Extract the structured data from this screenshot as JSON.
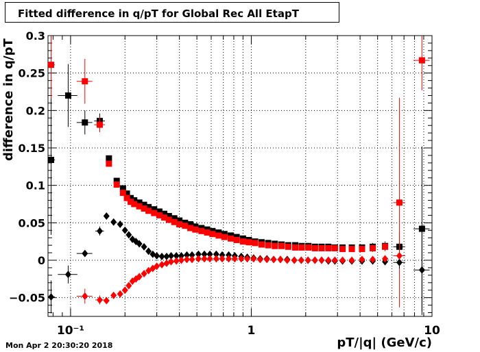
{
  "chart_data": {
    "type": "scatter",
    "title": "Fitted difference in q/pT for Global Rec All EtapT",
    "xlabel": "pT/|q| (GeV/c)",
    "ylabel": "difference in q/pT",
    "xscale": "log",
    "xlim": [
      0.075,
      10
    ],
    "ylim": [
      -0.075,
      0.3
    ],
    "grid": true,
    "timestamp": "Mon Apr  2 20:30:20 2018",
    "x_ticks": [
      {
        "value": 0.1,
        "label": "10⁻¹"
      },
      {
        "value": 1,
        "label": "1"
      },
      {
        "value": 10,
        "label": "10"
      }
    ],
    "y_ticks": [
      {
        "value": -0.05,
        "label": "−0.05"
      },
      {
        "value": 0,
        "label": "0"
      },
      {
        "value": 0.05,
        "label": "0.05"
      },
      {
        "value": 0.1,
        "label": "0.1"
      },
      {
        "value": 0.15,
        "label": "0.15"
      },
      {
        "value": 0.2,
        "label": "0.2"
      },
      {
        "value": 0.25,
        "label": "0.25"
      },
      {
        "value": 0.3,
        "label": "0.3"
      }
    ],
    "series": [
      {
        "color": "#000000",
        "marker": "square",
        "points": [
          {
            "x": 0.078,
            "y": 0.134,
            "ey": 0.1,
            "ex": 0.004
          },
          {
            "x": 0.097,
            "y": 0.22,
            "ey": 0.042,
            "ex": 0.012
          },
          {
            "x": 0.12,
            "y": 0.184,
            "ey": 0.016,
            "ex": 0.012
          },
          {
            "x": 0.145,
            "y": 0.186,
            "ey": 0.01,
            "ex": 0.01
          },
          {
            "x": 0.163,
            "y": 0.136,
            "ey": 0.004
          },
          {
            "x": 0.18,
            "y": 0.106,
            "ey": 0.003
          },
          {
            "x": 0.195,
            "y": 0.096
          },
          {
            "x": 0.205,
            "y": 0.089
          },
          {
            "x": 0.215,
            "y": 0.083
          },
          {
            "x": 0.225,
            "y": 0.08
          },
          {
            "x": 0.24,
            "y": 0.077
          },
          {
            "x": 0.255,
            "y": 0.074
          },
          {
            "x": 0.27,
            "y": 0.071
          },
          {
            "x": 0.29,
            "y": 0.068
          },
          {
            "x": 0.31,
            "y": 0.065
          },
          {
            "x": 0.33,
            "y": 0.062
          },
          {
            "x": 0.35,
            "y": 0.059
          },
          {
            "x": 0.375,
            "y": 0.056
          },
          {
            "x": 0.4,
            "y": 0.053
          },
          {
            "x": 0.43,
            "y": 0.05
          },
          {
            "x": 0.46,
            "y": 0.048
          },
          {
            "x": 0.49,
            "y": 0.045
          },
          {
            "x": 0.53,
            "y": 0.043
          },
          {
            "x": 0.57,
            "y": 0.041
          },
          {
            "x": 0.61,
            "y": 0.039
          },
          {
            "x": 0.66,
            "y": 0.037
          },
          {
            "x": 0.71,
            "y": 0.035
          },
          {
            "x": 0.77,
            "y": 0.033
          },
          {
            "x": 0.83,
            "y": 0.031
          },
          {
            "x": 0.9,
            "y": 0.029
          },
          {
            "x": 0.97,
            "y": 0.027
          },
          {
            "x": 1.05,
            "y": 0.025
          },
          {
            "x": 1.14,
            "y": 0.024
          },
          {
            "x": 1.24,
            "y": 0.023
          },
          {
            "x": 1.35,
            "y": 0.022
          },
          {
            "x": 1.47,
            "y": 0.021
          },
          {
            "x": 1.6,
            "y": 0.02
          },
          {
            "x": 1.75,
            "y": 0.02
          },
          {
            "x": 1.9,
            "y": 0.019
          },
          {
            "x": 2.07,
            "y": 0.019
          },
          {
            "x": 2.25,
            "y": 0.018
          },
          {
            "x": 2.45,
            "y": 0.018
          },
          {
            "x": 2.67,
            "y": 0.018
          },
          {
            "x": 2.9,
            "y": 0.017,
            "ey": 0.002
          },
          {
            "x": 3.2,
            "y": 0.017,
            "ey": 0.003
          },
          {
            "x": 3.6,
            "y": 0.017,
            "ey": 0.003
          },
          {
            "x": 4.1,
            "y": 0.017,
            "ey": 0.004
          },
          {
            "x": 4.7,
            "y": 0.018,
            "ey": 0.005
          },
          {
            "x": 5.5,
            "y": 0.019,
            "ey": 0.006
          },
          {
            "x": 6.6,
            "y": 0.018,
            "ey": 0.02,
            "ex": 0.5
          },
          {
            "x": 8.8,
            "y": 0.042,
            "ey": 0.11,
            "ex": 0.9
          }
        ]
      },
      {
        "color": "#ff0000",
        "marker": "square",
        "points": [
          {
            "x": 0.078,
            "y": 0.261,
            "ey": 0.045,
            "ex": 0.004
          },
          {
            "x": 0.12,
            "y": 0.239,
            "ey": 0.03,
            "ex": 0.012
          },
          {
            "x": 0.145,
            "y": 0.181,
            "ey": 0.01,
            "ex": 0.01
          },
          {
            "x": 0.163,
            "y": 0.129,
            "ey": 0.004
          },
          {
            "x": 0.18,
            "y": 0.101,
            "ey": 0.003
          },
          {
            "x": 0.195,
            "y": 0.09
          },
          {
            "x": 0.205,
            "y": 0.083
          },
          {
            "x": 0.215,
            "y": 0.078
          },
          {
            "x": 0.225,
            "y": 0.075
          },
          {
            "x": 0.24,
            "y": 0.072
          },
          {
            "x": 0.255,
            "y": 0.069
          },
          {
            "x": 0.27,
            "y": 0.066
          },
          {
            "x": 0.29,
            "y": 0.063
          },
          {
            "x": 0.31,
            "y": 0.06
          },
          {
            "x": 0.33,
            "y": 0.057
          },
          {
            "x": 0.35,
            "y": 0.054
          },
          {
            "x": 0.375,
            "y": 0.051
          },
          {
            "x": 0.4,
            "y": 0.048
          },
          {
            "x": 0.43,
            "y": 0.046
          },
          {
            "x": 0.46,
            "y": 0.043
          },
          {
            "x": 0.49,
            "y": 0.041
          },
          {
            "x": 0.53,
            "y": 0.039
          },
          {
            "x": 0.57,
            "y": 0.037
          },
          {
            "x": 0.61,
            "y": 0.035
          },
          {
            "x": 0.66,
            "y": 0.033
          },
          {
            "x": 0.71,
            "y": 0.031
          },
          {
            "x": 0.77,
            "y": 0.029
          },
          {
            "x": 0.83,
            "y": 0.027
          },
          {
            "x": 0.9,
            "y": 0.025
          },
          {
            "x": 0.97,
            "y": 0.024
          },
          {
            "x": 1.05,
            "y": 0.023
          },
          {
            "x": 1.14,
            "y": 0.021
          },
          {
            "x": 1.24,
            "y": 0.02
          },
          {
            "x": 1.35,
            "y": 0.019
          },
          {
            "x": 1.47,
            "y": 0.019
          },
          {
            "x": 1.6,
            "y": 0.018
          },
          {
            "x": 1.75,
            "y": 0.017
          },
          {
            "x": 1.9,
            "y": 0.017
          },
          {
            "x": 2.07,
            "y": 0.017
          },
          {
            "x": 2.25,
            "y": 0.016
          },
          {
            "x": 2.45,
            "y": 0.016
          },
          {
            "x": 2.67,
            "y": 0.016
          },
          {
            "x": 2.9,
            "y": 0.016,
            "ey": 0.002
          },
          {
            "x": 3.2,
            "y": 0.015,
            "ey": 0.003
          },
          {
            "x": 3.6,
            "y": 0.015,
            "ey": 0.003
          },
          {
            "x": 4.1,
            "y": 0.015,
            "ey": 0.004
          },
          {
            "x": 4.7,
            "y": 0.016,
            "ey": 0.005
          },
          {
            "x": 5.5,
            "y": 0.018,
            "ey": 0.006
          },
          {
            "x": 6.6,
            "y": 0.077,
            "ey": 0.14,
            "ex": 0.5
          },
          {
            "x": 8.8,
            "y": 0.267,
            "ey": 0.04,
            "ex": 0.9
          }
        ]
      },
      {
        "color": "#000000",
        "marker": "diamond",
        "points": [
          {
            "x": 0.078,
            "y": -0.049,
            "ey": 0.022,
            "ex": 0.004
          },
          {
            "x": 0.097,
            "y": -0.019,
            "ey": 0.012,
            "ex": 0.012
          },
          {
            "x": 0.12,
            "y": 0.009,
            "ey": 0.004,
            "ex": 0.012
          },
          {
            "x": 0.145,
            "y": 0.039,
            "ey": 0.006,
            "ex": 0.008
          },
          {
            "x": 0.158,
            "y": 0.059,
            "ey": 0.003
          },
          {
            "x": 0.173,
            "y": 0.051
          },
          {
            "x": 0.188,
            "y": 0.048
          },
          {
            "x": 0.2,
            "y": 0.04
          },
          {
            "x": 0.21,
            "y": 0.034
          },
          {
            "x": 0.22,
            "y": 0.028
          },
          {
            "x": 0.23,
            "y": 0.025
          },
          {
            "x": 0.24,
            "y": 0.022
          },
          {
            "x": 0.255,
            "y": 0.018
          },
          {
            "x": 0.27,
            "y": 0.012
          },
          {
            "x": 0.285,
            "y": 0.008
          },
          {
            "x": 0.3,
            "y": 0.006
          },
          {
            "x": 0.32,
            "y": 0.005
          },
          {
            "x": 0.34,
            "y": 0.005
          },
          {
            "x": 0.36,
            "y": 0.006
          },
          {
            "x": 0.385,
            "y": 0.006
          },
          {
            "x": 0.41,
            "y": 0.006
          },
          {
            "x": 0.44,
            "y": 0.007
          },
          {
            "x": 0.47,
            "y": 0.007
          },
          {
            "x": 0.51,
            "y": 0.008
          },
          {
            "x": 0.55,
            "y": 0.008
          },
          {
            "x": 0.59,
            "y": 0.008
          },
          {
            "x": 0.64,
            "y": 0.008
          },
          {
            "x": 0.69,
            "y": 0.007
          },
          {
            "x": 0.75,
            "y": 0.007
          },
          {
            "x": 0.81,
            "y": 0.006
          },
          {
            "x": 0.88,
            "y": 0.005
          },
          {
            "x": 0.95,
            "y": 0.004
          },
          {
            "x": 1.03,
            "y": 0.003
          },
          {
            "x": 1.12,
            "y": 0.002
          },
          {
            "x": 1.22,
            "y": 0.002
          },
          {
            "x": 1.33,
            "y": 0.001
          },
          {
            "x": 1.45,
            "y": 0.001
          },
          {
            "x": 1.58,
            "y": 0.001
          },
          {
            "x": 1.73,
            "y": 0.0
          },
          {
            "x": 1.89,
            "y": 0.0
          },
          {
            "x": 2.06,
            "y": 0.0
          },
          {
            "x": 2.25,
            "y": 0.0
          },
          {
            "x": 2.45,
            "y": 0.0
          },
          {
            "x": 2.67,
            "y": -0.001
          },
          {
            "x": 2.9,
            "y": -0.001
          },
          {
            "x": 3.2,
            "y": -0.001
          },
          {
            "x": 3.6,
            "y": -0.001
          },
          {
            "x": 4.1,
            "y": -0.001
          },
          {
            "x": 4.7,
            "y": -0.001
          },
          {
            "x": 5.5,
            "y": -0.002
          },
          {
            "x": 6.6,
            "y": -0.003,
            "ey": 0.008,
            "ex": 0.5
          },
          {
            "x": 8.8,
            "y": -0.013,
            "ey": 0.06,
            "ex": 0.9
          }
        ]
      },
      {
        "color": "#ff0000",
        "marker": "diamond",
        "points": [
          {
            "x": 0.12,
            "y": -0.048,
            "ey": 0.01,
            "ex": 0.012
          },
          {
            "x": 0.145,
            "y": -0.053,
            "ey": 0.006,
            "ex": 0.008
          },
          {
            "x": 0.158,
            "y": -0.054,
            "ey": 0.004
          },
          {
            "x": 0.173,
            "y": -0.047
          },
          {
            "x": 0.188,
            "y": -0.045
          },
          {
            "x": 0.2,
            "y": -0.04
          },
          {
            "x": 0.21,
            "y": -0.034
          },
          {
            "x": 0.22,
            "y": -0.028
          },
          {
            "x": 0.23,
            "y": -0.025
          },
          {
            "x": 0.24,
            "y": -0.022
          },
          {
            "x": 0.255,
            "y": -0.018
          },
          {
            "x": 0.27,
            "y": -0.014
          },
          {
            "x": 0.285,
            "y": -0.011
          },
          {
            "x": 0.3,
            "y": -0.008
          },
          {
            "x": 0.32,
            "y": -0.006
          },
          {
            "x": 0.34,
            "y": -0.004
          },
          {
            "x": 0.36,
            "y": -0.002
          },
          {
            "x": 0.385,
            "y": -0.001
          },
          {
            "x": 0.41,
            "y": 0.0
          },
          {
            "x": 0.44,
            "y": 0.001
          },
          {
            "x": 0.47,
            "y": 0.001
          },
          {
            "x": 0.51,
            "y": 0.002
          },
          {
            "x": 0.55,
            "y": 0.002
          },
          {
            "x": 0.59,
            "y": 0.002
          },
          {
            "x": 0.64,
            "y": 0.002
          },
          {
            "x": 0.69,
            "y": 0.002
          },
          {
            "x": 0.75,
            "y": 0.002
          },
          {
            "x": 0.81,
            "y": 0.002
          },
          {
            "x": 0.88,
            "y": 0.002
          },
          {
            "x": 0.95,
            "y": 0.002
          },
          {
            "x": 1.03,
            "y": 0.002
          },
          {
            "x": 1.12,
            "y": 0.001
          },
          {
            "x": 1.22,
            "y": 0.001
          },
          {
            "x": 1.33,
            "y": 0.001
          },
          {
            "x": 1.45,
            "y": 0.001
          },
          {
            "x": 1.58,
            "y": 0.0
          },
          {
            "x": 1.73,
            "y": 0.0
          },
          {
            "x": 1.89,
            "y": 0.0
          },
          {
            "x": 2.06,
            "y": 0.0
          },
          {
            "x": 2.25,
            "y": 0.0
          },
          {
            "x": 2.45,
            "y": 0.0
          },
          {
            "x": 2.67,
            "y": 0.0
          },
          {
            "x": 2.9,
            "y": 0.0
          },
          {
            "x": 3.2,
            "y": 0.0
          },
          {
            "x": 3.6,
            "y": 0.0
          },
          {
            "x": 4.1,
            "y": 0.001
          },
          {
            "x": 4.7,
            "y": 0.001
          },
          {
            "x": 5.5,
            "y": 0.002
          },
          {
            "x": 6.6,
            "y": 0.006,
            "ey": 0.004,
            "ex": 0.5
          }
        ]
      }
    ]
  }
}
